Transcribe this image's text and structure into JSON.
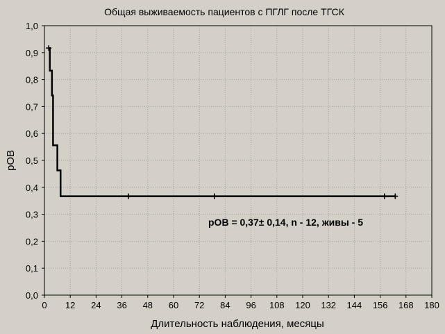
{
  "chart_data": {
    "type": "line",
    "title": "Общая выживаемость пациентов с ПГЛГ после ТГСК",
    "xlabel": "Длительность наблюдения, месяцы",
    "ylabel": "pOB",
    "xlim": [
      0,
      180
    ],
    "ylim": [
      0,
      1.0
    ],
    "x_ticks": [
      0,
      12,
      24,
      36,
      48,
      60,
      72,
      84,
      96,
      108,
      120,
      132,
      144,
      156,
      168,
      180
    ],
    "x_tick_labels": [
      "0",
      "12",
      "24",
      "36",
      "48",
      "60",
      "72",
      "84",
      "96",
      "108",
      "120",
      "132",
      "144",
      "156",
      "168",
      "180"
    ],
    "y_ticks": [
      0,
      0.1,
      0.2,
      0.3,
      0.4,
      0.5,
      0.6,
      0.7,
      0.8,
      0.9,
      1.0
    ],
    "y_tick_labels": [
      "0,0",
      "0,1",
      "0,2",
      "0,3",
      "0,4",
      "0,5",
      "0,6",
      "0,7",
      "0,8",
      "0,9",
      "1,0"
    ],
    "grid": true,
    "series": [
      {
        "step_points": [
          [
            2,
            0.917
          ],
          [
            2.5,
            0.917
          ],
          [
            2.5,
            0.833
          ],
          [
            3.5,
            0.833
          ],
          [
            3.5,
            0.741
          ],
          [
            4,
            0.741
          ],
          [
            4,
            0.556
          ],
          [
            6,
            0.556
          ],
          [
            6,
            0.463
          ],
          [
            7.5,
            0.463
          ],
          [
            7.5,
            0.367
          ],
          [
            163,
            0.367
          ]
        ],
        "censored": [
          [
            2,
            0.917
          ],
          [
            39,
            0.367
          ],
          [
            79,
            0.367
          ],
          [
            158,
            0.367
          ],
          [
            163,
            0.367
          ]
        ]
      }
    ],
    "annotation": "pOB = 0,37± 0,14, n - 12, живы - 5",
    "colors": {
      "background": "#d4d0c8",
      "plot": "#d4d0c8",
      "grid": "#a0a0a0",
      "line": "#000000"
    }
  }
}
